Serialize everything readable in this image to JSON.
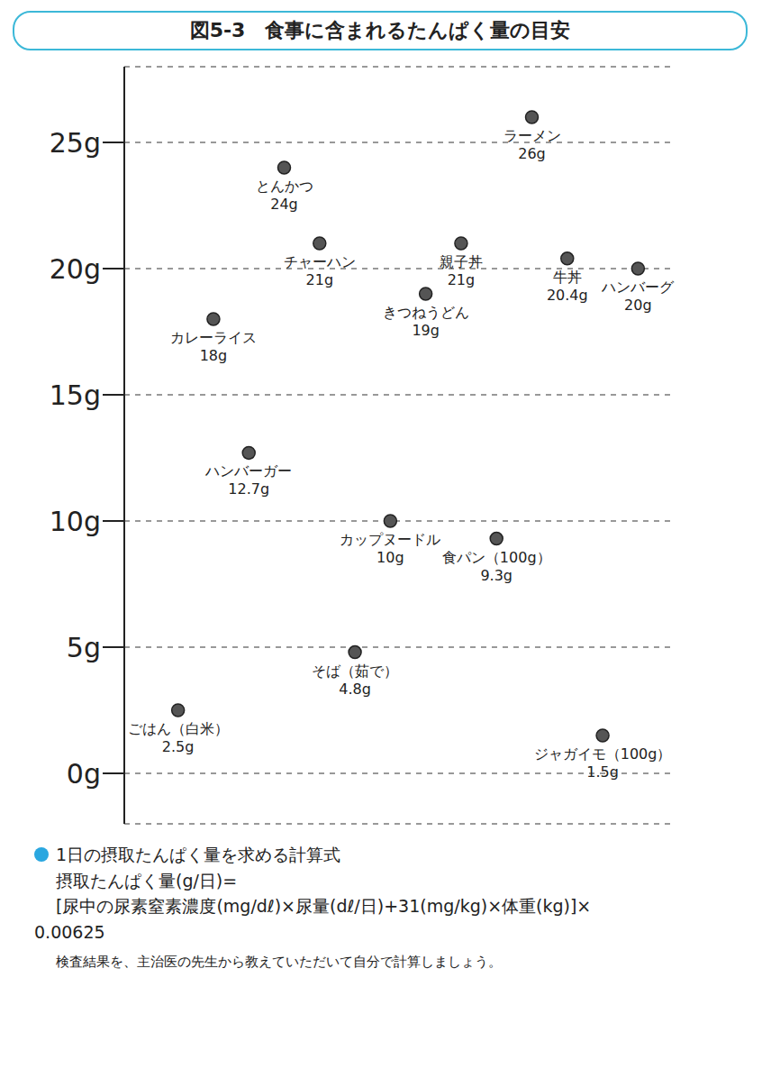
{
  "chart_data": {
    "type": "scatter",
    "title": "図5-3　食事に含まれるたんぱく量の目安",
    "categories": [
      "ごはん（白米）",
      "カレーライス",
      "ハンバーガー",
      "とんかつ",
      "チャーハン",
      "そば（茹で）",
      "カップヌードル",
      "きつねうどん",
      "親子丼",
      "食パン（100g）",
      "ラーメン",
      "牛丼",
      "ジャガイモ（100g）",
      "ハンバーグ"
    ],
    "values": [
      2.5,
      18,
      12.7,
      24,
      21,
      4.8,
      10,
      19,
      21,
      9.3,
      26,
      20.4,
      1.5,
      20
    ],
    "value_labels": [
      "2.5g",
      "18g",
      "12.7g",
      "24g",
      "21g",
      "4.8g",
      "10g",
      "19g",
      "21g",
      "9.3g",
      "26g",
      "20.4g",
      "1.5g",
      "20g"
    ],
    "color": "#555555",
    "ylim": [
      -2,
      28
    ],
    "yticks": [
      {
        "value": 0,
        "label": "0g"
      },
      {
        "value": 5,
        "label": "5g"
      },
      {
        "value": 10,
        "label": "10g"
      },
      {
        "value": 15,
        "label": "15g"
      },
      {
        "value": 20,
        "label": "20g"
      },
      {
        "value": 25,
        "label": "25g"
      }
    ],
    "grid": true,
    "tick_labels": "y",
    "data_labels": true,
    "annotations": [
      "1日の摂取たんぱく量を求める計算式",
      "摂取たんぱく量(g/日)=",
      "[尿中の尿素窒素濃度(mg/dℓ)×尿量(dℓ/日)+31(mg/kg)×体重(kg)]×",
      "0.00625",
      "検査結果を、主治医の先生から教えていただいて自分で計算しましょう。"
    ]
  }
}
